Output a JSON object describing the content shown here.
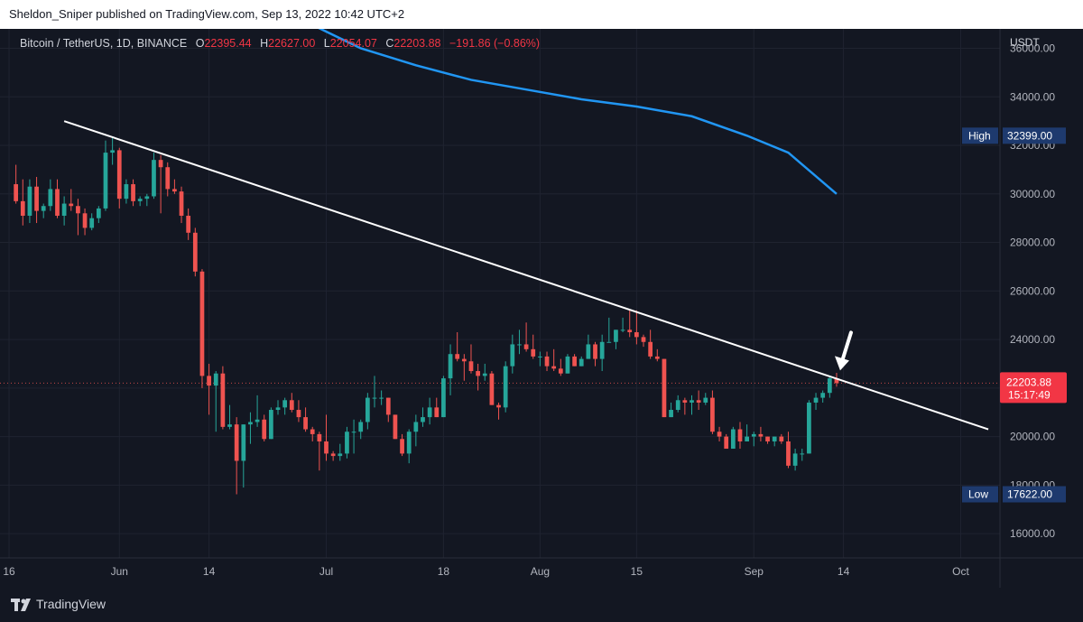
{
  "header": {
    "published_text": "Sheldon_Sniper published on TradingView.com, Sep 13, 2022 10:42 UTC+2"
  },
  "legend": {
    "symbol": "Bitcoin / TetherUS, 1D, BINANCE",
    "open_label": "O",
    "open": "22395.44",
    "high_label": "H",
    "high": "22627.00",
    "low_label": "L",
    "low": "22054.07",
    "close_label": "C",
    "close": "22203.88",
    "change": "−191.86 (−0.86%)"
  },
  "footer": {
    "brand": "TradingView"
  },
  "colors": {
    "up": "#26a69a",
    "down": "#ef5350",
    "ma": "#2196f3",
    "trendline": "#ffffff",
    "tag_blue": "#1e3a6e",
    "tag_red": "#f23645"
  },
  "chart_data": {
    "type": "candlestick",
    "symbol": "Bitcoin / TetherUS",
    "interval": "1D",
    "exchange": "BINANCE",
    "currency": "USDT",
    "y_axis_label": "USDT",
    "ylim": [
      15000,
      36800
    ],
    "y_ticks": [
      "16000.00",
      "18000.00",
      "20000.00",
      "22000.00",
      "24000.00",
      "26000.00",
      "28000.00",
      "30000.00",
      "32000.00",
      "34000.00",
      "36000.00"
    ],
    "x_range": [
      "2022-05-16",
      "2022-10-08"
    ],
    "x_ticks": [
      {
        "date": "2022-05-16",
        "label": "16"
      },
      {
        "date": "2022-06-01",
        "label": "Jun"
      },
      {
        "date": "2022-06-14",
        "label": "14"
      },
      {
        "date": "2022-07-01",
        "label": "Jul"
      },
      {
        "date": "2022-07-18",
        "label": "18"
      },
      {
        "date": "2022-08-01",
        "label": "Aug"
      },
      {
        "date": "2022-08-15",
        "label": "15"
      },
      {
        "date": "2022-09-01",
        "label": "Sep"
      },
      {
        "date": "2022-09-14",
        "label": "14"
      },
      {
        "date": "2022-10-01",
        "label": "Oct"
      }
    ],
    "candles": [
      [
        "2022-05-17",
        30400,
        31200,
        29600,
        29700
      ],
      [
        "2022-05-18",
        29700,
        30600,
        28700,
        29100
      ],
      [
        "2022-05-19",
        29100,
        30600,
        28800,
        30300
      ],
      [
        "2022-05-20",
        30300,
        30700,
        28800,
        29300
      ],
      [
        "2022-05-21",
        29300,
        29600,
        29000,
        29500
      ],
      [
        "2022-05-22",
        29500,
        30600,
        29300,
        30200
      ],
      [
        "2022-05-23",
        30200,
        30600,
        29000,
        29100
      ],
      [
        "2022-05-24",
        29100,
        29900,
        28700,
        29600
      ],
      [
        "2022-05-25",
        29600,
        30200,
        29300,
        29500
      ],
      [
        "2022-05-26",
        29500,
        29800,
        28300,
        29200
      ],
      [
        "2022-05-27",
        29200,
        29400,
        28300,
        28600
      ],
      [
        "2022-05-28",
        28600,
        29200,
        28500,
        29000
      ],
      [
        "2022-05-29",
        29000,
        29500,
        28800,
        29400
      ],
      [
        "2022-05-30",
        29400,
        32200,
        29300,
        31700
      ],
      [
        "2022-05-31",
        31700,
        32300,
        31200,
        31800
      ],
      [
        "2022-06-01",
        31800,
        31900,
        29400,
        29800
      ],
      [
        "2022-06-02",
        29800,
        30600,
        29600,
        30400
      ],
      [
        "2022-06-03",
        30400,
        30600,
        29500,
        29700
      ],
      [
        "2022-06-04",
        29700,
        29900,
        29500,
        29800
      ],
      [
        "2022-06-05",
        29800,
        30000,
        29500,
        29900
      ],
      [
        "2022-06-06",
        29900,
        31700,
        29800,
        31400
      ],
      [
        "2022-06-07",
        31400,
        31600,
        29200,
        31100
      ],
      [
        "2022-06-08",
        31100,
        31300,
        29900,
        30200
      ],
      [
        "2022-06-09",
        30200,
        30600,
        30000,
        30100
      ],
      [
        "2022-06-10",
        30100,
        30300,
        28800,
        29100
      ],
      [
        "2022-06-11",
        29100,
        29400,
        28100,
        28400
      ],
      [
        "2022-06-12",
        28400,
        28600,
        26600,
        26800
      ],
      [
        "2022-06-13",
        26800,
        26900,
        22000,
        22500
      ],
      [
        "2022-06-14",
        22500,
        23000,
        20900,
        22100
      ],
      [
        "2022-06-15",
        22100,
        22700,
        20200,
        22600
      ],
      [
        "2022-06-16",
        22600,
        22900,
        20300,
        20400
      ],
      [
        "2022-06-17",
        20400,
        21300,
        20300,
        20500
      ],
      [
        "2022-06-18",
        20500,
        20800,
        17622,
        19000
      ],
      [
        "2022-06-19",
        19000,
        20500,
        17900,
        20500
      ],
      [
        "2022-06-20",
        20500,
        21000,
        19700,
        20600
      ],
      [
        "2022-06-21",
        20600,
        21700,
        20400,
        20700
      ],
      [
        "2022-06-22",
        20700,
        20900,
        19800,
        19900
      ],
      [
        "2022-06-23",
        19900,
        21200,
        19900,
        21100
      ],
      [
        "2022-06-24",
        21100,
        21500,
        20900,
        21200
      ],
      [
        "2022-06-25",
        21200,
        21600,
        20900,
        21500
      ],
      [
        "2022-06-26",
        21500,
        21800,
        21000,
        21100
      ],
      [
        "2022-06-27",
        21100,
        21500,
        20600,
        20800
      ],
      [
        "2022-06-28",
        20800,
        21200,
        20200,
        20300
      ],
      [
        "2022-06-29",
        20300,
        20400,
        19800,
        20100
      ],
      [
        "2022-06-30",
        20100,
        20200,
        18600,
        19800
      ],
      [
        "2022-07-01",
        19800,
        20900,
        19000,
        19300
      ],
      [
        "2022-07-02",
        19300,
        19400,
        19000,
        19200
      ],
      [
        "2022-07-03",
        19200,
        19700,
        19000,
        19300
      ],
      [
        "2022-07-04",
        19300,
        20400,
        19100,
        20200
      ],
      [
        "2022-07-05",
        20200,
        20700,
        19300,
        20200
      ],
      [
        "2022-07-06",
        20200,
        20700,
        19900,
        20600
      ],
      [
        "2022-07-07",
        20600,
        21800,
        20300,
        21600
      ],
      [
        "2022-07-08",
        21600,
        22500,
        21200,
        21600
      ],
      [
        "2022-07-09",
        21600,
        21900,
        21300,
        21600
      ],
      [
        "2022-07-10",
        21600,
        21600,
        20600,
        20900
      ],
      [
        "2022-07-11",
        20900,
        20900,
        19900,
        19900
      ],
      [
        "2022-07-12",
        19900,
        20100,
        19200,
        19300
      ],
      [
        "2022-07-13",
        19300,
        20300,
        18900,
        20200
      ],
      [
        "2022-07-14",
        20200,
        20900,
        19600,
        20600
      ],
      [
        "2022-07-15",
        20600,
        21200,
        20400,
        20800
      ],
      [
        "2022-07-16",
        20800,
        21600,
        20500,
        21200
      ],
      [
        "2022-07-17",
        21200,
        21600,
        20800,
        20800
      ],
      [
        "2022-07-18",
        20800,
        22500,
        20800,
        22400
      ],
      [
        "2022-07-19",
        22400,
        23800,
        21700,
        23400
      ],
      [
        "2022-07-20",
        23400,
        24300,
        23100,
        23200
      ],
      [
        "2022-07-21",
        23200,
        23400,
        22300,
        23100
      ],
      [
        "2022-07-22",
        23100,
        23800,
        22600,
        22700
      ],
      [
        "2022-07-23",
        22700,
        23000,
        21900,
        22500
      ],
      [
        "2022-07-24",
        22500,
        23000,
        22300,
        22600
      ],
      [
        "2022-07-25",
        22600,
        22700,
        21300,
        21300
      ],
      [
        "2022-07-26",
        21300,
        21400,
        20700,
        21200
      ],
      [
        "2022-07-27",
        21200,
        23100,
        21000,
        22900
      ],
      [
        "2022-07-28",
        22900,
        24200,
        22600,
        23800
      ],
      [
        "2022-07-29",
        23800,
        24400,
        23400,
        23800
      ],
      [
        "2022-07-30",
        23800,
        24700,
        23500,
        23600
      ],
      [
        "2022-07-31",
        23600,
        24200,
        23200,
        23300
      ],
      [
        "2022-08-01",
        23300,
        23500,
        22900,
        23300
      ],
      [
        "2022-08-02",
        23300,
        23500,
        22700,
        22900
      ],
      [
        "2022-08-03",
        22900,
        23600,
        22700,
        22800
      ],
      [
        "2022-08-04",
        22800,
        23200,
        22500,
        22600
      ],
      [
        "2022-08-05",
        22600,
        23400,
        22600,
        23300
      ],
      [
        "2022-08-06",
        23300,
        23400,
        22900,
        22900
      ],
      [
        "2022-08-07",
        22900,
        23300,
        22900,
        23200
      ],
      [
        "2022-08-08",
        23200,
        24200,
        23200,
        23800
      ],
      [
        "2022-08-09",
        23800,
        23900,
        22900,
        23200
      ],
      [
        "2022-08-10",
        23200,
        24200,
        22700,
        23900
      ],
      [
        "2022-08-11",
        23900,
        24900,
        23900,
        23900
      ],
      [
        "2022-08-12",
        23900,
        24400,
        23600,
        24400
      ],
      [
        "2022-08-13",
        24400,
        24900,
        24300,
        24400
      ],
      [
        "2022-08-14",
        24400,
        25200,
        24100,
        24300
      ],
      [
        "2022-08-15",
        24300,
        25200,
        23800,
        24100
      ],
      [
        "2022-08-16",
        24100,
        24200,
        23700,
        23900
      ],
      [
        "2022-08-17",
        23900,
        24400,
        23200,
        23300
      ],
      [
        "2022-08-18",
        23300,
        23600,
        23100,
        23200
      ],
      [
        "2022-08-19",
        23200,
        23200,
        20800,
        20800
      ],
      [
        "2022-08-20",
        20800,
        21400,
        20800,
        21100
      ],
      [
        "2022-08-21",
        21100,
        21700,
        21000,
        21500
      ],
      [
        "2022-08-22",
        21500,
        21600,
        20900,
        21400
      ],
      [
        "2022-08-23",
        21400,
        21700,
        20900,
        21500
      ],
      [
        "2022-08-24",
        21500,
        21900,
        21100,
        21400
      ],
      [
        "2022-08-25",
        21400,
        21800,
        21300,
        21600
      ],
      [
        "2022-08-26",
        21600,
        21900,
        20100,
        20200
      ],
      [
        "2022-08-27",
        20200,
        20400,
        19800,
        20000
      ],
      [
        "2022-08-28",
        20000,
        20100,
        19600,
        19500
      ],
      [
        "2022-08-29",
        19500,
        20400,
        19600,
        20300
      ],
      [
        "2022-08-30",
        20300,
        20600,
        19500,
        19800
      ],
      [
        "2022-08-31",
        19800,
        20500,
        19800,
        20000
      ],
      [
        "2022-09-01",
        20000,
        20200,
        19600,
        20100
      ],
      [
        "2022-09-02",
        20100,
        20400,
        19800,
        20000
      ],
      [
        "2022-09-03",
        20000,
        20000,
        19700,
        19800
      ],
      [
        "2022-09-04",
        19800,
        20000,
        19600,
        20000
      ],
      [
        "2022-09-05",
        20000,
        20100,
        19700,
        19800
      ],
      [
        "2022-09-06",
        19800,
        20200,
        18700,
        18800
      ],
      [
        "2022-09-07",
        18800,
        19500,
        18600,
        19300
      ],
      [
        "2022-09-08",
        19300,
        19500,
        19000,
        19300
      ],
      [
        "2022-09-09",
        19300,
        21500,
        19300,
        21400
      ],
      [
        "2022-09-10",
        21400,
        21800,
        21100,
        21600
      ],
      [
        "2022-09-11",
        21600,
        21900,
        21400,
        21800
      ],
      [
        "2022-09-12",
        21800,
        22500,
        21600,
        22400
      ],
      [
        "2022-09-13",
        22395.44,
        22627,
        22054.07,
        22203.88
      ]
    ],
    "moving_average": {
      "color": "#2196f3",
      "points": [
        [
          "2022-06-28",
          37100
        ],
        [
          "2022-07-06",
          36000
        ],
        [
          "2022-07-14",
          35300
        ],
        [
          "2022-07-22",
          34700
        ],
        [
          "2022-07-30",
          34300
        ],
        [
          "2022-08-07",
          33900
        ],
        [
          "2022-08-15",
          33600
        ],
        [
          "2022-08-23",
          33200
        ],
        [
          "2022-08-31",
          32400
        ],
        [
          "2022-09-06",
          31700
        ],
        [
          "2022-09-13",
          30000
        ]
      ]
    },
    "trendline": {
      "color": "#ffffff",
      "start": [
        "2022-05-24",
        33000
      ],
      "end": [
        "2022-10-05",
        20300
      ]
    },
    "annotation": {
      "type": "arrow",
      "color": "#ffffff",
      "target": [
        "2022-09-13",
        22650
      ]
    },
    "price_tags": {
      "high": {
        "label": "High",
        "value": "32399.00",
        "price": 32399
      },
      "low": {
        "label": "Low",
        "value": "17622.00",
        "price": 17622
      },
      "last": {
        "value": "22203.88",
        "countdown": "15:17:49",
        "price": 22203.88
      }
    }
  }
}
